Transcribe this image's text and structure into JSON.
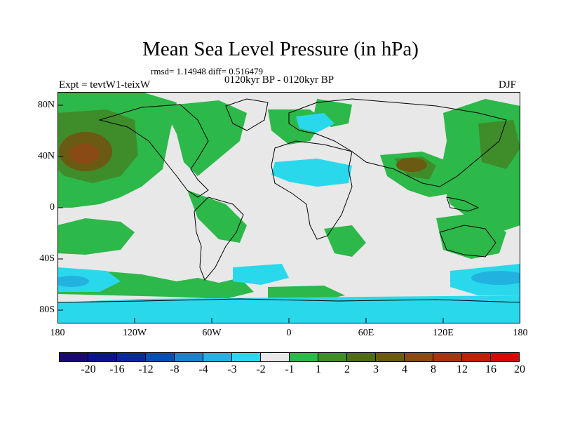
{
  "title": "Mean Sea Level Pressure (in hPa)",
  "stats_text": "rmsd= 1.14948 diff= 0.516479",
  "subtitle": "0120kyr BP - 0120kyr BP",
  "experiment": "Expt = tevtW1-teixW",
  "season": "DJF",
  "x_ticks": [
    "180",
    "120W",
    "60W",
    "0",
    "60E",
    "120E",
    "180"
  ],
  "y_ticks": [
    "80N",
    "40N",
    "0",
    "40S",
    "80S"
  ],
  "colorbar": {
    "colors": [
      "#1a0a6e",
      "#0c148c",
      "#0a2a9c",
      "#0a4fae",
      "#1a84c8",
      "#22b2e0",
      "#2ad8ec",
      "#e8e8e8",
      "#2db84a",
      "#3f8c2a",
      "#4f6c1a",
      "#6a5a12",
      "#8a4a16",
      "#a83418",
      "#c41c0a",
      "#d80808"
    ],
    "labels": [
      "-20",
      "-16",
      "-12",
      "-8",
      "-4",
      "-3",
      "-2",
      "-1",
      "1",
      "2",
      "3",
      "4",
      "8",
      "12",
      "16",
      "20"
    ]
  },
  "legend_colors": {
    "neutral": "#e8e8e8",
    "positive_1_2": "#2db84a",
    "positive_2_3": "#3f8c2a",
    "positive_3_4": "#4f6c1a",
    "positive_4_8": "#6a5a12",
    "negative_1_2": "#2ad8ec",
    "negative_2_3": "#22b2e0"
  }
}
